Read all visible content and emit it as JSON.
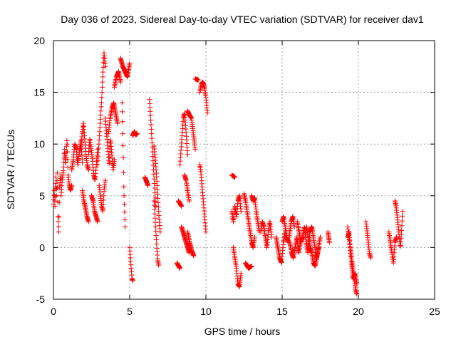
{
  "chart_data": {
    "type": "scatter",
    "title": "Day 036 of 2023, Sidereal Day-to-day VTEC variation (SDTVAR) for receiver dav1",
    "xlabel": "GPS time / hours",
    "ylabel": "SDTVAR / TECUs",
    "xlim": [
      0,
      25
    ],
    "ylim": [
      -5,
      20
    ],
    "xticks": [
      0,
      5,
      10,
      15,
      20,
      25
    ],
    "yticks": [
      -5,
      0,
      5,
      10,
      15,
      20
    ],
    "grid": true,
    "marker": "+",
    "marker_color": "#ff0000",
    "series": [
      {
        "name": "SDTVAR",
        "segments": [
          {
            "t0": 0.0,
            "t1": 0.5,
            "v": [
              4.2,
              5.5,
              4.0,
              6.8,
              5.0,
              7.2,
              3.0,
              1.5,
              5.8,
              6.5,
              7.0
            ]
          },
          {
            "t0": 0.5,
            "t1": 1.2,
            "v": [
              5.0,
              6.5,
              7.5,
              9.5,
              8.0,
              10.5,
              7.0,
              6.0,
              5.5,
              6.0
            ]
          },
          {
            "t0": 1.2,
            "t1": 1.9,
            "v": [
              7.5,
              8.5,
              10.0,
              9.5,
              8.0,
              9.2,
              10.3,
              8.2
            ]
          },
          {
            "t0": 1.8,
            "t1": 2.3,
            "v": [
              9.5,
              11.0,
              12.0,
              10.5,
              9.0,
              8.0,
              7.5
            ]
          },
          {
            "t0": 1.9,
            "t1": 2.3,
            "v": [
              5.5,
              4.5,
              3.8,
              3.0,
              2.5
            ]
          },
          {
            "t0": 2.3,
            "t1": 2.9,
            "v": [
              9.0,
              10.5,
              9.5,
              8.5,
              7.0,
              6.5,
              8.0,
              9.5
            ]
          },
          {
            "t0": 2.5,
            "t1": 2.9,
            "v": [
              5.0,
              4.5,
              3.5,
              3.0,
              2.5
            ]
          },
          {
            "t0": 2.9,
            "t1": 3.4,
            "v": [
              8.0,
              10.0,
              12.0,
              14.0,
              16.5,
              18.8,
              17.5
            ]
          },
          {
            "t0": 3.0,
            "t1": 3.4,
            "v": [
              6.0,
              5.0,
              4.0,
              3.5,
              5.5,
              6.5
            ]
          },
          {
            "t0": 3.4,
            "t1": 4.0,
            "v": [
              12.5,
              11.0,
              9.5,
              8.0,
              10.5,
              9.0,
              7.5,
              8.5
            ]
          },
          {
            "t0": 3.6,
            "t1": 4.2,
            "v": [
              11.0,
              12.5,
              13.5,
              14.0,
              13.0,
              12.0
            ]
          },
          {
            "t0": 4.0,
            "t1": 4.4,
            "v": [
              15.5,
              16.5,
              17.0,
              16.0
            ]
          },
          {
            "t0": 4.4,
            "t1": 5.0,
            "v": [
              18.3,
              17.5,
              17.0,
              16.5,
              17.8
            ]
          },
          {
            "t0": 4.5,
            "t1": 4.7,
            "v": [
              14.0,
              12.5,
              10.5,
              8.5,
              6.0,
              4.5,
              3.2,
              2.0
            ]
          },
          {
            "t0": 5.0,
            "t1": 5.2,
            "v": [
              0.0,
              -1.0,
              -2.0,
              -3.0,
              -3.2
            ]
          },
          {
            "t0": 5.2,
            "t1": 5.5,
            "v": [
              10.8,
              11.2,
              10.9,
              11.0
            ]
          },
          {
            "t0": 6.0,
            "t1": 6.2,
            "v": [
              6.8,
              6.0
            ]
          },
          {
            "t0": 6.3,
            "t1": 6.7,
            "v": [
              14.3,
              13.0,
              11.5,
              10.0,
              8.5,
              7.0,
              5.5,
              4.0
            ]
          },
          {
            "t0": 6.6,
            "t1": 6.9,
            "v": [
              4.5,
              3.0,
              1.5,
              0.0,
              -1.2,
              -1.7
            ]
          },
          {
            "t0": 6.6,
            "t1": 7.0,
            "v": [
              9.8,
              8.5,
              7.0,
              5.0,
              3.0,
              1.5
            ]
          },
          {
            "t0": 8.1,
            "t1": 8.3,
            "v": [
              -1.5,
              -2.0
            ]
          },
          {
            "t0": 8.2,
            "t1": 8.4,
            "v": [
              4.5,
              4.0
            ]
          },
          {
            "t0": 8.3,
            "t1": 8.8,
            "v": [
              8.0,
              9.5,
              11.0,
              12.5,
              13.0,
              12.0,
              10.5,
              9.0
            ]
          },
          {
            "t0": 8.4,
            "t1": 8.9,
            "v": [
              2.0,
              1.5,
              1.0,
              0.5,
              0.0,
              -0.5
            ]
          },
          {
            "t0": 8.6,
            "t1": 8.9,
            "v": [
              7.0,
              6.5,
              5.5,
              4.5
            ]
          },
          {
            "t0": 8.8,
            "t1": 9.3,
            "v": [
              13.2,
              12.8,
              12.5,
              11.0,
              9.5
            ]
          },
          {
            "t0": 8.8,
            "t1": 9.2,
            "v": [
              1.5,
              0.5,
              -0.3,
              -0.8
            ]
          },
          {
            "t0": 9.3,
            "t1": 9.5,
            "v": [
              16.3,
              16.2
            ]
          },
          {
            "t0": 9.6,
            "t1": 10.1,
            "v": [
              15.0,
              15.8,
              16.0,
              15.5,
              14.5,
              13.0
            ]
          },
          {
            "t0": 9.6,
            "t1": 10.0,
            "v": [
              8.0,
              7.5,
              6.5,
              5.5,
              4.5,
              3.5,
              2.5,
              1.5
            ]
          },
          {
            "t0": 11.7,
            "t1": 11.9,
            "v": [
              7.0,
              6.8
            ]
          },
          {
            "t0": 11.7,
            "t1": 12.3,
            "v": [
              3.5,
              2.5,
              4.0,
              3.0,
              4.5,
              5.0,
              3.5
            ]
          },
          {
            "t0": 11.8,
            "t1": 12.3,
            "v": [
              0.0,
              -1.0,
              -2.0,
              -3.5,
              -3.8,
              -2.5
            ]
          },
          {
            "t0": 12.5,
            "t1": 13.2,
            "v": [
              5.2,
              4.5,
              3.5,
              2.5,
              1.5,
              0.5,
              0.0,
              1.0
            ]
          },
          {
            "t0": 12.6,
            "t1": 13.0,
            "v": [
              -1.5,
              -2.0,
              -1.8
            ]
          },
          {
            "t0": 13.0,
            "t1": 13.5,
            "v": [
              5.0,
              4.5,
              4.8,
              3.5,
              2.5,
              1.5
            ]
          },
          {
            "t0": 13.6,
            "t1": 14.3,
            "v": [
              1.5,
              2.5,
              2.0,
              1.0,
              0.0,
              1.5,
              2.5,
              1.0
            ]
          },
          {
            "t0": 14.6,
            "t1": 15.2,
            "v": [
              1.0,
              0.0,
              -1.0,
              -1.5,
              0.5,
              1.5
            ]
          },
          {
            "t0": 15.0,
            "t1": 15.8,
            "v": [
              2.5,
              3.0,
              2.0,
              1.0,
              0.5,
              1.5,
              2.5,
              3.0,
              2.0
            ]
          },
          {
            "t0": 15.5,
            "t1": 16.2,
            "v": [
              0.5,
              -0.5,
              -1.0,
              0.0,
              1.0,
              -0.5,
              0.5
            ]
          },
          {
            "t0": 16.0,
            "t1": 16.8,
            "v": [
              2.5,
              1.5,
              0.5,
              1.0,
              2.0,
              0.5,
              -0.5,
              1.0
            ]
          },
          {
            "t0": 16.6,
            "t1": 17.5,
            "v": [
              2.0,
              1.0,
              0.0,
              -0.5,
              -1.5,
              -1.8,
              -1.0,
              0.0,
              1.0
            ]
          },
          {
            "t0": 16.8,
            "t1": 17.4,
            "v": [
              1.5,
              2.0,
              0.5,
              -1.0,
              0.0
            ]
          },
          {
            "t0": 18.0,
            "t1": 18.1,
            "v": [
              1.5,
              0.5
            ]
          },
          {
            "t0": 19.3,
            "t1": 19.9,
            "v": [
              1.0,
              1.5,
              0.0,
              -1.0,
              -2.0,
              -3.0,
              -4.0,
              -4.5
            ]
          },
          {
            "t0": 19.3,
            "t1": 19.9,
            "v": [
              2.0,
              0.5,
              -1.5,
              -3.0,
              -2.5,
              -3.5
            ]
          },
          {
            "t0": 20.5,
            "t1": 20.8,
            "v": [
              2.5,
              1.5,
              0.5,
              -0.5,
              -1.0
            ]
          },
          {
            "t0": 22.0,
            "t1": 22.5,
            "v": [
              1.5,
              0.5,
              -0.5,
              -1.5,
              0.5,
              1.0
            ]
          },
          {
            "t0": 22.4,
            "t1": 22.9,
            "v": [
              4.5,
              4.0,
              3.0,
              2.0,
              1.0,
              0.0,
              1.5,
              3.5
            ]
          }
        ]
      }
    ]
  }
}
